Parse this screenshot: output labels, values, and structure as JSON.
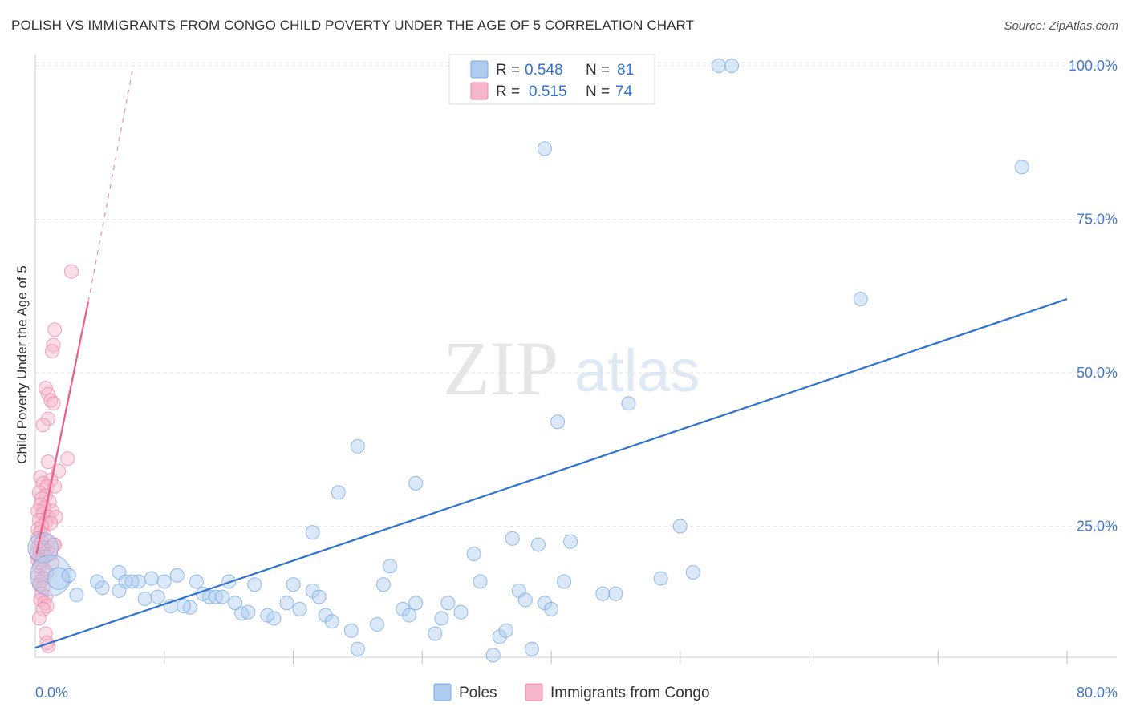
{
  "title": "POLISH VS IMMIGRANTS FROM CONGO CHILD POVERTY UNDER THE AGE OF 5 CORRELATION CHART",
  "source": "Source: ZipAtlas.com",
  "watermark": {
    "zip": "ZIP",
    "atlas": "atlas"
  },
  "colors": {
    "poles": "#7aaae8",
    "poles_fill": "#aecbf0",
    "poles_line": "#2f72d0",
    "congo": "#f08aa8",
    "congo_fill": "#f6b7cb",
    "congo_line": "#ea5b89",
    "axis_text": "#4477cc"
  },
  "legend_top": {
    "rows": [
      {
        "series": "Poles",
        "r_label": "R =",
        "r_value": "0.548",
        "n_label": "N =",
        "n_value": "81"
      },
      {
        "series": "Immigrants from Congo",
        "r_label": "R =",
        "r_value": "0.515",
        "n_label": "N =",
        "n_value": "74"
      }
    ]
  },
  "legend_bottom": [
    "Poles",
    "Immigrants from Congo"
  ],
  "chart_data": {
    "type": "scatter",
    "title": "POLISH VS IMMIGRANTS FROM CONGO CHILD POVERTY UNDER THE AGE OF 5 CORRELATION CHART",
    "xlabel": "",
    "ylabel": "Child Poverty Under the Age of 5",
    "xlim": [
      0,
      80
    ],
    "ylim": [
      0,
      100
    ],
    "x_tick_labels": [
      "0.0%",
      "80.0%"
    ],
    "y_ticks": [
      25,
      50,
      75,
      100
    ],
    "y_tick_labels": [
      "25.0%",
      "50.0%",
      "75.0%",
      "100.0%"
    ],
    "grid": true,
    "series": [
      {
        "name": "Poles",
        "r": 0.548,
        "n": 81,
        "trend": {
          "x": [
            0,
            80
          ],
          "y": [
            5.2,
            62
          ]
        },
        "points": [
          [
            0.6,
            21.5,
            2.2
          ],
          [
            1.2,
            17,
            3.0
          ],
          [
            1.8,
            16.5,
            1.6
          ],
          [
            3.2,
            13.8,
            1
          ],
          [
            2.6,
            17,
            1
          ],
          [
            5.2,
            15,
            1
          ],
          [
            4.8,
            16,
            1
          ],
          [
            6.5,
            17.5,
            1
          ],
          [
            7.0,
            16,
            1
          ],
          [
            8.0,
            16,
            1
          ],
          [
            7.5,
            16,
            1
          ],
          [
            9.0,
            16.5,
            1
          ],
          [
            10.0,
            16,
            1
          ],
          [
            11.0,
            17,
            1
          ],
          [
            8.5,
            13.2,
            1
          ],
          [
            9.5,
            13.5,
            1
          ],
          [
            10.5,
            12.0,
            1
          ],
          [
            12.0,
            11.8,
            1
          ],
          [
            11.5,
            12.0,
            1
          ],
          [
            13.5,
            13.5,
            1
          ],
          [
            13.0,
            14.0,
            1
          ],
          [
            12.5,
            16,
            1
          ],
          [
            14.0,
            13.5,
            1
          ],
          [
            15.5,
            12.5,
            1
          ],
          [
            16.0,
            10.8,
            1
          ],
          [
            16.5,
            11,
            1
          ],
          [
            15.0,
            16,
            1
          ],
          [
            17.0,
            15.5,
            1
          ],
          [
            18.5,
            10.0,
            1
          ],
          [
            18.0,
            10.5,
            1
          ],
          [
            19.5,
            12.5,
            1
          ],
          [
            20.0,
            15.5,
            1
          ],
          [
            20.5,
            11.5,
            1
          ],
          [
            21.5,
            14.5,
            1
          ],
          [
            22.0,
            13.5,
            1
          ],
          [
            22.5,
            10.5,
            1
          ],
          [
            23.0,
            9.5,
            1
          ],
          [
            24.5,
            8.0,
            1
          ],
          [
            25.0,
            38.0,
            1
          ],
          [
            26.5,
            9.0,
            1
          ],
          [
            27.0,
            15.5,
            1
          ],
          [
            27.5,
            18.5,
            1
          ],
          [
            28.5,
            11.5,
            1
          ],
          [
            29.0,
            10.5,
            1
          ],
          [
            29.5,
            12.5,
            1
          ],
          [
            31.0,
            7.5,
            1
          ],
          [
            31.5,
            10.0,
            1
          ],
          [
            32.0,
            12.5,
            1
          ],
          [
            33.0,
            11.0,
            1
          ],
          [
            34.0,
            20.5,
            1
          ],
          [
            34.5,
            16.0,
            1
          ],
          [
            35.5,
            4.0,
            1
          ],
          [
            36.0,
            7.0,
            1
          ],
          [
            36.5,
            8.0,
            1
          ],
          [
            37.0,
            23.0,
            1
          ],
          [
            37.5,
            14.5,
            1
          ],
          [
            38.0,
            13.0,
            1
          ],
          [
            38.5,
            5.0,
            1
          ],
          [
            39.0,
            22.0,
            1
          ],
          [
            39.5,
            12.5,
            1
          ],
          [
            40.0,
            11.5,
            1
          ],
          [
            40.5,
            42.0,
            1
          ],
          [
            41.0,
            16.0,
            1
          ],
          [
            41.5,
            22.5,
            1
          ],
          [
            44.0,
            14.0,
            1
          ],
          [
            45.0,
            14.0,
            1
          ],
          [
            46.0,
            45.0,
            1
          ],
          [
            48.5,
            16.5,
            1
          ],
          [
            50.0,
            25.0,
            1
          ],
          [
            51.0,
            17.5,
            1
          ],
          [
            53.0,
            100.0,
            1
          ],
          [
            54.0,
            100.0,
            1
          ],
          [
            39.5,
            86.5,
            1
          ],
          [
            76.5,
            83.5,
            1
          ],
          [
            64.0,
            62.0,
            1
          ],
          [
            29.5,
            32.0,
            1
          ],
          [
            23.5,
            30.5,
            1
          ],
          [
            21.5,
            24.0,
            1
          ],
          [
            14.5,
            13.5,
            1
          ],
          [
            6.5,
            14.5,
            1
          ],
          [
            25.0,
            5.0,
            1
          ]
        ]
      },
      {
        "name": "Immigrants from Congo",
        "r": 0.515,
        "n": 74,
        "trend": {
          "x": [
            0.1,
            4.1
          ],
          "y": [
            20.5,
            61.5
          ]
        },
        "trend_extension": {
          "x": [
            4.1,
            7.6
          ],
          "y": [
            61.5,
            100
          ]
        },
        "points": [
          [
            2.8,
            66.5,
            1
          ],
          [
            1.5,
            57.0,
            1
          ],
          [
            1.4,
            54.5,
            1
          ],
          [
            1.3,
            53.5,
            1
          ],
          [
            0.8,
            47.5,
            1
          ],
          [
            1.0,
            46.5,
            1
          ],
          [
            1.2,
            45.5,
            1
          ],
          [
            1.4,
            45.0,
            1
          ],
          [
            1.0,
            42.5,
            1
          ],
          [
            0.6,
            41.5,
            1
          ],
          [
            2.5,
            36.0,
            1
          ],
          [
            1.0,
            35.5,
            1
          ],
          [
            1.8,
            34.0,
            1
          ],
          [
            0.4,
            33.0,
            1
          ],
          [
            1.2,
            32.5,
            1
          ],
          [
            0.6,
            32.0,
            1
          ],
          [
            0.9,
            31.5,
            1
          ],
          [
            1.5,
            31.5,
            1
          ],
          [
            0.3,
            30.5,
            1
          ],
          [
            0.8,
            30.0,
            1
          ],
          [
            0.5,
            29.5,
            1
          ],
          [
            1.1,
            29.0,
            1
          ],
          [
            0.4,
            28.5,
            1
          ],
          [
            0.7,
            28.0,
            1
          ],
          [
            0.2,
            27.5,
            1
          ],
          [
            1.3,
            27.5,
            1
          ],
          [
            0.6,
            27.0,
            1
          ],
          [
            1.0,
            26.5,
            1
          ],
          [
            1.6,
            26.5,
            1
          ],
          [
            0.3,
            26.0,
            1
          ],
          [
            0.8,
            25.5,
            1
          ],
          [
            1.2,
            25.5,
            1
          ],
          [
            0.5,
            25.0,
            1
          ],
          [
            0.2,
            24.5,
            1
          ],
          [
            0.4,
            24.0,
            1
          ],
          [
            0.7,
            23.5,
            1
          ],
          [
            0.2,
            23.0,
            1
          ],
          [
            0.5,
            22.5,
            1
          ],
          [
            1.0,
            22.5,
            1
          ],
          [
            1.4,
            22.0,
            1
          ],
          [
            0.3,
            22.0,
            1
          ],
          [
            0.6,
            21.5,
            1
          ],
          [
            0.2,
            21.5,
            1
          ],
          [
            0.9,
            21.0,
            1
          ],
          [
            0.4,
            21.0,
            1
          ],
          [
            0.1,
            20.5,
            1
          ],
          [
            0.6,
            20.5,
            1
          ],
          [
            1.2,
            20.5,
            1
          ],
          [
            0.3,
            20.0,
            1
          ],
          [
            0.8,
            20.0,
            1
          ],
          [
            0.2,
            19.5,
            1
          ],
          [
            0.5,
            19.5,
            1
          ],
          [
            0.4,
            19.0,
            1
          ],
          [
            1.3,
            19.0,
            1
          ],
          [
            0.3,
            18.5,
            1
          ],
          [
            0.6,
            18.0,
            1
          ],
          [
            0.9,
            17.5,
            1
          ],
          [
            0.2,
            17.0,
            1
          ],
          [
            0.5,
            16.5,
            1
          ],
          [
            0.7,
            16.5,
            1
          ],
          [
            0.4,
            16.0,
            1
          ],
          [
            0.3,
            15.5,
            1
          ],
          [
            0.6,
            15.0,
            1
          ],
          [
            0.5,
            14.0,
            1
          ],
          [
            0.8,
            13.5,
            1
          ],
          [
            0.4,
            13.0,
            1
          ],
          [
            0.7,
            12.5,
            1
          ],
          [
            0.9,
            12.0,
            1
          ],
          [
            0.6,
            11.5,
            1
          ],
          [
            0.3,
            10.0,
            1
          ],
          [
            0.8,
            7.5,
            1
          ],
          [
            1.0,
            5.5,
            1
          ],
          [
            0.9,
            6.0,
            1
          ],
          [
            1.5,
            22.0,
            1
          ]
        ]
      }
    ]
  }
}
